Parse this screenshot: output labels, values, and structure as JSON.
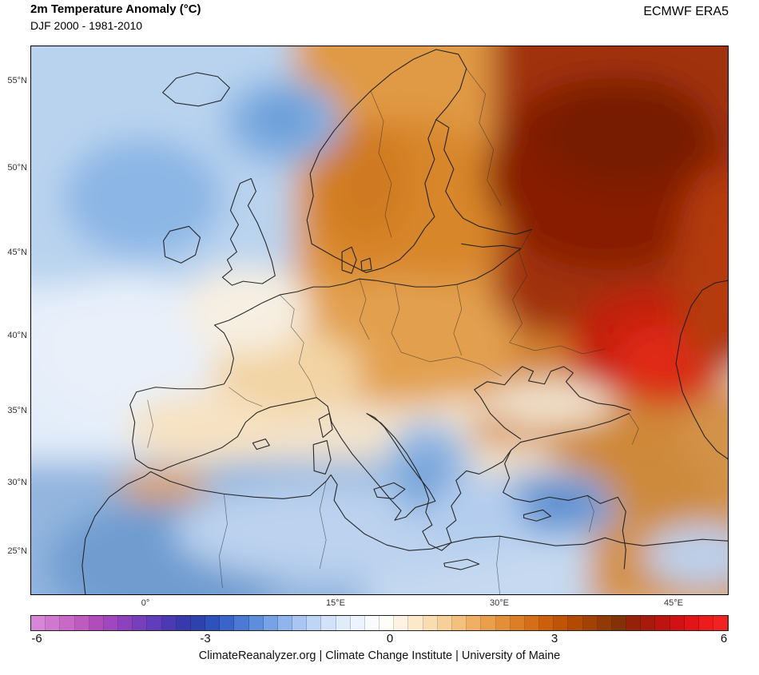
{
  "header": {
    "title": "2m Temperature Anomaly (°C)",
    "subtitle": "DJF 2000 - 1981-2010",
    "source": "ECMWF ERA5"
  },
  "map": {
    "axes": {
      "lat_labels": [
        "55°N",
        "50°N",
        "45°N",
        "40°N",
        "35°N",
        "30°N",
        "25°N"
      ],
      "lon_labels": [
        "0°",
        "15°E",
        "30°E",
        "45°E"
      ]
    }
  },
  "colorbar": {
    "tick_labels": [
      "-6",
      "-3",
      "0",
      "3",
      "6"
    ],
    "colors": [
      "#d886d8",
      "#d078d0",
      "#c869c8",
      "#bf5abf",
      "#b14cbd",
      "#a046bf",
      "#8c42bf",
      "#7640bd",
      "#603dba",
      "#4b3ab6",
      "#3939ae",
      "#2e41ae",
      "#2f51bc",
      "#3a64ca",
      "#4b79d4",
      "#5f8dde",
      "#77a2e6",
      "#90b5ed",
      "#a9c6f2",
      "#bfd5f6",
      "#d2e2f9",
      "#e1ecfb",
      "#eef4fd",
      "#f9fbfe",
      "#fffdf8",
      "#fef3e2",
      "#fce8cb",
      "#fadcb2",
      "#f7cf98",
      "#f3c07e",
      "#efb065",
      "#ea9f4d",
      "#e48e38",
      "#dd7e26",
      "#d56e17",
      "#cb5f0c",
      "#c05305",
      "#b24a02",
      "#a24103",
      "#923905",
      "#843106",
      "#952208",
      "#a81a0c",
      "#bd1410",
      "#d11114",
      "#e11418",
      "#ec1c1c",
      "#f32222"
    ]
  },
  "footer": {
    "credit": "ClimateReanalyzer.org | Climate Change Institute | University of Maine"
  },
  "chart_data": {
    "type": "heatmap",
    "title": "2m Temperature Anomaly (°C)",
    "subtitle": "DJF 2000 - 1981-2010",
    "dataset": "ECMWF ERA5",
    "region": "Europe, North Atlantic, North Africa, western Russia",
    "lat_ticks": [
      "55°N",
      "50°N",
      "45°N",
      "40°N",
      "35°N",
      "30°N",
      "25°N"
    ],
    "lon_ticks": [
      "0°",
      "15°E",
      "30°E",
      "45°E"
    ],
    "colorbar": {
      "min": -6,
      "max": 6,
      "tick_values": [
        -6,
        -3,
        0,
        3,
        6
      ],
      "units": "°C"
    },
    "notable_anomalies": [
      {
        "region": "Northwestern Russia (upper-right of map)",
        "anomaly_c": 5.5
      },
      {
        "region": "Volga / Caspian lowland (bright red core)",
        "anomaly_c": 6
      },
      {
        "region": "Eastern Europe / Ukraine",
        "anomaly_c": 3.5
      },
      {
        "region": "Scandinavia and Baltic",
        "anomaly_c": 2.5
      },
      {
        "region": "Central Europe / Germany / Poland",
        "anomaly_c": 2
      },
      {
        "region": "France and Iberia interior",
        "anomaly_c": 0.5
      },
      {
        "region": "North Atlantic west of Ireland",
        "anomaly_c": -1
      },
      {
        "region": "Blue patch northeast of Iceland",
        "anomaly_c": -1.5
      },
      {
        "region": "Balkans / Adriatic",
        "anomaly_c": -1.5
      },
      {
        "region": "Central Anatolia (Turkey)",
        "anomaly_c": -2.5
      },
      {
        "region": "Northwest Africa (Morocco/Algeria)",
        "anomaly_c": -2
      },
      {
        "region": "Mediterranean Sea",
        "anomaly_c": -1
      }
    ]
  }
}
